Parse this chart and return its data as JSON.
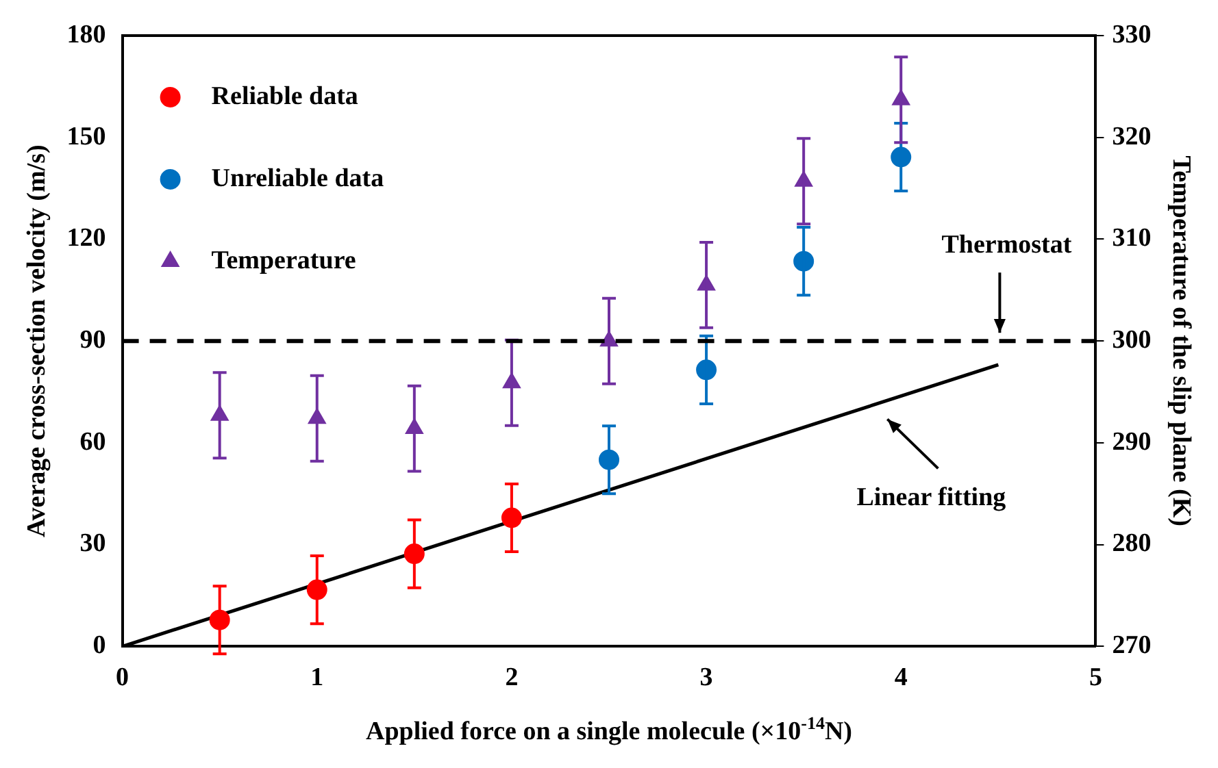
{
  "chart_data": {
    "type": "scatter",
    "xlabel": "Applied force on a single molecule (×10$^{-14}$N)",
    "ylabel": "Average cross-section velocity (m/s)",
    "y2label": "Temperature of the slip plane (K)",
    "xlim": [
      0,
      5
    ],
    "xticks": [
      0,
      1,
      2,
      3,
      4,
      5
    ],
    "ylim": [
      0,
      180
    ],
    "yticks": [
      0,
      30,
      60,
      90,
      120,
      150,
      180
    ],
    "y2lim": [
      270,
      330
    ],
    "y2ticks": [
      270,
      280,
      290,
      300,
      310,
      320,
      330
    ],
    "legend": "top left",
    "grid": false,
    "series": [
      {
        "name": "Reliable data",
        "marker": "circle",
        "color": "#ff0000",
        "x": [
          0.5,
          1,
          1.5,
          2
        ],
        "values": [
          7.8,
          16.7,
          27.3,
          37.9
        ],
        "errors": [
          10,
          10,
          10,
          10
        ]
      },
      {
        "name": "Unreliable data",
        "marker": "circle",
        "color": "#0070c0",
        "x": [
          2.5,
          3,
          3.5,
          4
        ],
        "values": [
          55,
          81.5,
          113.5,
          144.2
        ],
        "errors": [
          10,
          10,
          10,
          10
        ]
      },
      {
        "name": "Temperature",
        "marker": "triangle",
        "axis": "y2",
        "color": "#7030a0",
        "x": [
          0.5,
          1,
          1.5,
          2,
          2.5,
          3,
          3.5,
          4
        ],
        "values": [
          292.7,
          292.4,
          291.4,
          295.9,
          300,
          305.5,
          315.7,
          323.7
        ],
        "errors": [
          4.2,
          4.2,
          4.2,
          4.2,
          4.2,
          4.2,
          4.2,
          4.2
        ]
      },
      {
        "type": "line",
        "marker": "none",
        "color": "#000000",
        "x": [
          0,
          4.5
        ],
        "values": [
          0,
          83
        ]
      }
    ],
    "ref_lines": [
      {
        "axis": "y",
        "value": 90,
        "label": "Thermostat",
        "line_style": "dashed",
        "color": "#000000"
      }
    ],
    "annotations": [
      "Linear fitting"
    ]
  }
}
